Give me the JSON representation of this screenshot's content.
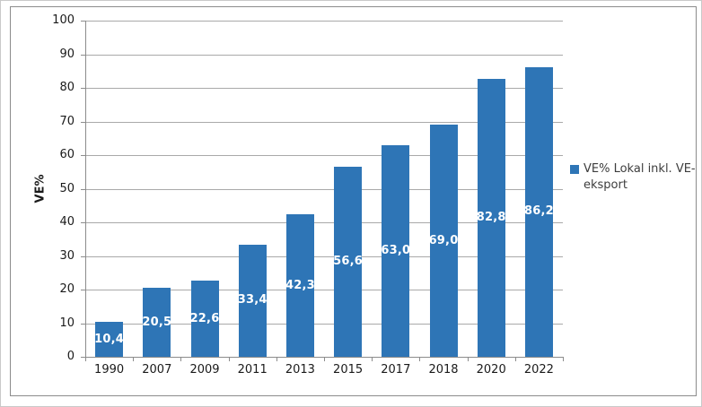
{
  "figure": {
    "background": "#FFFFFF",
    "outer_border_color": "#C9C9C9",
    "frame_border_color": "#8C8C8C"
  },
  "chart_data": {
    "type": "bar",
    "title": "",
    "xlabel": "",
    "ylabel": "VE%",
    "ylim": [
      0,
      100
    ],
    "ytick_interval": 10,
    "yticks": [
      0,
      10,
      20,
      30,
      40,
      50,
      60,
      70,
      80,
      90,
      100
    ],
    "grid": true,
    "categories": [
      "1990",
      "2007",
      "2009",
      "2011",
      "2013",
      "2015",
      "2017",
      "2018",
      "2020",
      "2022"
    ],
    "series": [
      {
        "name": "VE% Lokal inkl. VE-eksport",
        "values": [
          10.4,
          20.5,
          22.6,
          33.4,
          42.3,
          56.6,
          63.0,
          69.0,
          82.8,
          86.2
        ],
        "data_labels": [
          "10,4",
          "20,5",
          "22,6",
          "33,4",
          "42,3",
          "56,6",
          "63,0",
          "69,0",
          "82,8",
          "86,2"
        ]
      }
    ],
    "legend": {
      "position": "right",
      "entries": [
        "VE% Lokal inkl. VE-eksport"
      ]
    },
    "style": {
      "bar_color": "#2E75B6",
      "gridline_color": "#A9A9A9",
      "axis_line_color": "#8C8C8C",
      "tick_label_color": "#1A1A1A",
      "data_label_color": "#FFFFFF",
      "legend_text_color": "#3D3D3D"
    }
  }
}
